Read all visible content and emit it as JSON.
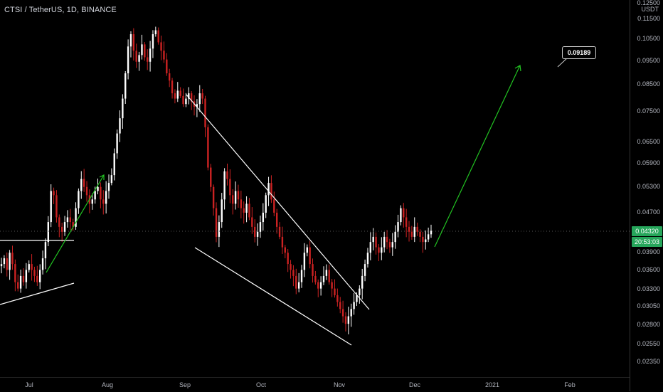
{
  "header": {
    "title": "CTSI / TetherUS, 1D, BINANCE"
  },
  "price_axis": {
    "currency": "USDT",
    "ticks": [
      "0.12500",
      "0.11500",
      "0.10500",
      "0.09500",
      "0.08500",
      "0.07500",
      "0.06500",
      "0.05900",
      "0.05300",
      "0.04700",
      "0.03900",
      "0.03600",
      "0.03300",
      "0.03050",
      "0.02800",
      "0.02550",
      "0.02350"
    ],
    "current_price": "0.04320",
    "countdown": "20:53:03"
  },
  "time_axis": {
    "ticks": [
      "Jul",
      "Aug",
      "Sep",
      "Oct",
      "Nov",
      "Dec",
      "2021",
      "Feb"
    ]
  },
  "annotation": {
    "target_label": "0.09189"
  },
  "colors": {
    "background": "#000000",
    "up": "#ffffff",
    "down": "#cc2222",
    "trendline": "#ffffff",
    "projection": "#22c322",
    "price_tag": "#26a65b"
  },
  "chart_data": {
    "type": "candlestick",
    "title": "CTSI / TetherUS, 1D, BINANCE",
    "y_scale": "log",
    "ylim": [
      0.0225,
      0.13
    ],
    "last_price": 0.0432,
    "price_path_daily_close": [
      0.037,
      0.038,
      0.036,
      0.039,
      0.037,
      0.034,
      0.033,
      0.035,
      0.034,
      0.036,
      0.037,
      0.036,
      0.035,
      0.034,
      0.036,
      0.038,
      0.041,
      0.045,
      0.052,
      0.051,
      0.046,
      0.044,
      0.043,
      0.045,
      0.046,
      0.045,
      0.044,
      0.048,
      0.052,
      0.055,
      0.053,
      0.051,
      0.049,
      0.05,
      0.052,
      0.053,
      0.05,
      0.049,
      0.052,
      0.054,
      0.056,
      0.062,
      0.068,
      0.073,
      0.08,
      0.09,
      0.102,
      0.108,
      0.1,
      0.095,
      0.098,
      0.103,
      0.097,
      0.095,
      0.101,
      0.108,
      0.11,
      0.104,
      0.1,
      0.096,
      0.09,
      0.087,
      0.082,
      0.08,
      0.083,
      0.081,
      0.078,
      0.08,
      0.082,
      0.079,
      0.077,
      0.078,
      0.082,
      0.08,
      0.07,
      0.058,
      0.053,
      0.048,
      0.042,
      0.045,
      0.05,
      0.057,
      0.055,
      0.051,
      0.049,
      0.052,
      0.05,
      0.048,
      0.047,
      0.049,
      0.046,
      0.044,
      0.042,
      0.043,
      0.045,
      0.047,
      0.051,
      0.054,
      0.05,
      0.047,
      0.044,
      0.042,
      0.04,
      0.039,
      0.037,
      0.036,
      0.035,
      0.033,
      0.034,
      0.036,
      0.039,
      0.04,
      0.037,
      0.035,
      0.034,
      0.033,
      0.034,
      0.035,
      0.036,
      0.034,
      0.033,
      0.032,
      0.031,
      0.03,
      0.029,
      0.028,
      0.029,
      0.03,
      0.031,
      0.032,
      0.033,
      0.035,
      0.037,
      0.039,
      0.041,
      0.042,
      0.04,
      0.039,
      0.04,
      0.042,
      0.041,
      0.04,
      0.041,
      0.043,
      0.045,
      0.048,
      0.046,
      0.044,
      0.043,
      0.042,
      0.044,
      0.043,
      0.042,
      0.041,
      0.0415,
      0.0425,
      0.0432
    ]
  }
}
